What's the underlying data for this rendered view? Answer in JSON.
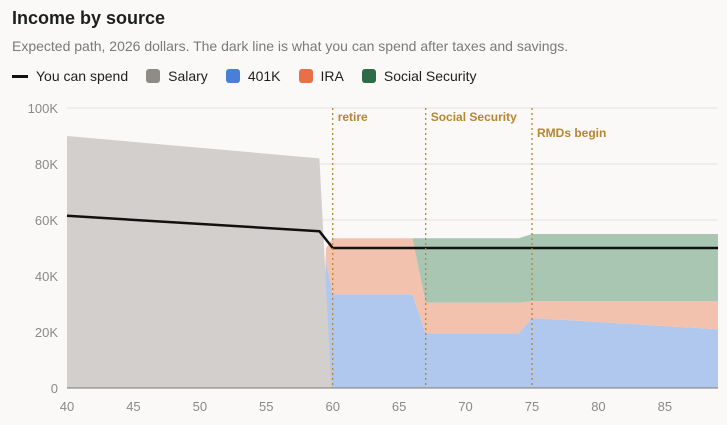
{
  "title": "Income by source",
  "subtitle": "Expected path, 2026 dollars. The dark line is what you can spend after taxes and savings.",
  "legend": {
    "spend": "You can spend",
    "salary": "Salary",
    "k401": "401K",
    "ira": "IRA",
    "ss": "Social Security"
  },
  "colors": {
    "salary": "#d2cfcc",
    "k401": "#b1c8ee",
    "ira": "#f2c2ae",
    "ss": "#a9c6b2",
    "spend": "#111111",
    "salary_swatch": "#8f8c88",
    "k401_swatch": "#4a7fd8",
    "ira_swatch": "#e86f48",
    "ss_swatch": "#2e6b47",
    "marker": "#b8862f"
  },
  "chart_data": {
    "type": "area",
    "title": "Income by source",
    "xlim": [
      40,
      89
    ],
    "ylim": [
      0,
      100000
    ],
    "x_ticks": [
      "40",
      "45",
      "50",
      "55",
      "60",
      "65",
      "70",
      "75",
      "80",
      "85"
    ],
    "y_ticks": [
      "0",
      "20K",
      "40K",
      "60K",
      "80K",
      "100K"
    ],
    "y_tick_values": [
      0,
      20000,
      40000,
      60000,
      80000,
      100000
    ],
    "x_tick_values": [
      40,
      45,
      50,
      55,
      60,
      65,
      70,
      75,
      80,
      85
    ],
    "series": [
      {
        "name": "Salary",
        "key": "salary",
        "points": [
          [
            40,
            90000
          ],
          [
            59,
            82000
          ],
          [
            59.9,
            0
          ],
          [
            89,
            0
          ]
        ]
      },
      {
        "name": "401K",
        "key": "k401",
        "points": [
          [
            40,
            0
          ],
          [
            59,
            0
          ],
          [
            59.5,
            45000
          ],
          [
            60,
            33500
          ],
          [
            66,
            33500
          ],
          [
            67,
            19500
          ],
          [
            74,
            19500
          ],
          [
            75,
            25000
          ],
          [
            89,
            21000
          ]
        ]
      },
      {
        "name": "IRA",
        "key": "ira",
        "points": [
          [
            40,
            0
          ],
          [
            59,
            0
          ],
          [
            59.5,
            5000
          ],
          [
            60,
            20000
          ],
          [
            66,
            20000
          ],
          [
            67,
            11000
          ],
          [
            74,
            11000
          ],
          [
            75,
            6000
          ],
          [
            89,
            10000
          ]
        ]
      },
      {
        "name": "Social Security",
        "key": "ss",
        "points": [
          [
            40,
            0
          ],
          [
            66,
            0
          ],
          [
            67,
            23000
          ],
          [
            74,
            23000
          ],
          [
            75,
            24000
          ],
          [
            89,
            24000
          ]
        ]
      }
    ],
    "spend_line": {
      "name": "You can spend",
      "points": [
        [
          40,
          61500
        ],
        [
          59,
          56000
        ],
        [
          60,
          50000
        ],
        [
          89,
          50000
        ]
      ]
    },
    "markers": [
      {
        "x": 60,
        "label": "retire",
        "level": 0
      },
      {
        "x": 67,
        "label": "Social Security",
        "level": 0
      },
      {
        "x": 75,
        "label": "RMDs begin",
        "level": 1
      }
    ],
    "grid": true
  }
}
